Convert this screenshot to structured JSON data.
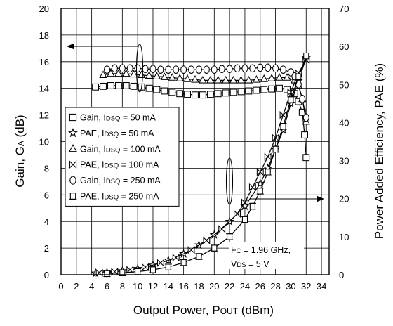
{
  "chart_data": {
    "type": "line",
    "title": "",
    "xlabel": "Output Power, P",
    "xlabel_sub": "OUT",
    "xlabel_unit": " (dBm)",
    "ylabel": "Gain, G",
    "ylabel_sub": "A",
    "ylabel_unit": " (dB)",
    "y2label": "Power Added Efficiency, PAE (%)",
    "xlim": [
      0,
      35
    ],
    "ylim": [
      0,
      20
    ],
    "y2lim": [
      0,
      70
    ],
    "grid": true,
    "xticks": [
      "0",
      "2",
      "4",
      "6",
      "8",
      "10",
      "12",
      "14",
      "16",
      "18",
      "20",
      "22",
      "24",
      "26",
      "28",
      "30",
      "32",
      "34"
    ],
    "yticks": [
      "0",
      "2",
      "4",
      "6",
      "8",
      "10",
      "12",
      "14",
      "16",
      "18",
      "20"
    ],
    "y2ticks": [
      "0",
      "10",
      "20",
      "30",
      "40",
      "50",
      "60",
      "70"
    ],
    "legend_position": "left-center",
    "legend": [
      {
        "series": 0,
        "pre": "Gain, I",
        "sub": "DSQ",
        "post": " = 50 mA"
      },
      {
        "series": 1,
        "pre": "PAE, I",
        "sub": "DSQ",
        "post": " = 50 mA"
      },
      {
        "series": 2,
        "pre": "Gain, I",
        "sub": "DSQ",
        "post": " = 100 mA"
      },
      {
        "series": 3,
        "pre": "PAE, I",
        "sub": "DSQ",
        "post": " = 100 mA"
      },
      {
        "series": 4,
        "pre": "Gain, I",
        "sub": "DSQ",
        "post": " = 250 mA"
      },
      {
        "series": 5,
        "pre": "PAE, I",
        "sub": "DSQ",
        "post": " = 250 mA"
      }
    ],
    "annotation": {
      "line1_pre": "F",
      "line1_sub": "C",
      "line1_post": " = 1.96 GHz,",
      "line2_pre": "V",
      "line2_sub": "DS",
      "line2_post": " = 5 V"
    },
    "series": [
      {
        "marker": "square",
        "axis": "left",
        "x": [
          4.5,
          5.5,
          6.5,
          7.5,
          8.5,
          9.5,
          10.5,
          11.5,
          12.5,
          13.5,
          14.5,
          15.5,
          16.5,
          17.5,
          18.5,
          19.5,
          20.5,
          21.5,
          22.5,
          23.5,
          24.5,
          25.5,
          26.5,
          27.5,
          28.5,
          29.5,
          30.5,
          31,
          31.5,
          31.8,
          32
        ],
        "y": [
          14.1,
          14.15,
          14.2,
          14.2,
          14.2,
          14.15,
          14.1,
          14.0,
          13.9,
          13.8,
          13.7,
          13.6,
          13.55,
          13.5,
          13.5,
          13.55,
          13.6,
          13.65,
          13.7,
          13.75,
          13.8,
          13.85,
          13.9,
          13.95,
          14.0,
          13.9,
          13.6,
          13.0,
          12.2,
          10.5,
          8.8
        ]
      },
      {
        "marker": "star",
        "axis": "right",
        "x": [
          4.5,
          6,
          8,
          10,
          12,
          14,
          16,
          18,
          20,
          22,
          24,
          26,
          27,
          28,
          29,
          30,
          31,
          32
        ],
        "y": [
          0.4,
          0.6,
          1.0,
          1.6,
          2.5,
          3.8,
          5.5,
          7.8,
          10.5,
          14,
          18,
          24,
          28,
          33,
          38,
          45,
          51,
          57
        ]
      },
      {
        "marker": "triangle",
        "axis": "left",
        "x": [
          5.5,
          6.5,
          7.5,
          8.5,
          9.5,
          10.5,
          11.5,
          12.5,
          13.5,
          14.5,
          15.5,
          16.5,
          17.5,
          18.5,
          19.5,
          20.5,
          21.5,
          22.5,
          23.5,
          24.5,
          25.5,
          26.5,
          27.5,
          28.5,
          29.5,
          30.5,
          31,
          31.5,
          32
        ],
        "y": [
          15.0,
          15.1,
          15.1,
          15.1,
          15.05,
          15.0,
          14.95,
          14.9,
          14.85,
          14.8,
          14.75,
          14.7,
          14.65,
          14.6,
          14.6,
          14.6,
          14.6,
          14.6,
          14.6,
          14.6,
          14.65,
          14.7,
          14.75,
          14.8,
          14.8,
          14.6,
          14.2,
          13.2,
          11.5
        ]
      },
      {
        "marker": "bowtie",
        "axis": "right",
        "x": [
          5,
          7,
          9,
          11,
          13,
          15,
          17,
          19,
          21,
          23,
          24,
          25,
          26,
          27,
          28,
          29,
          30,
          31,
          32
        ],
        "y": [
          0.5,
          0.8,
          1.3,
          2.0,
          3.1,
          4.5,
          6.5,
          9,
          12,
          16,
          19,
          23,
          27,
          31,
          36,
          42,
          48,
          53,
          56.5
        ]
      },
      {
        "marker": "circle",
        "axis": "left",
        "x": [
          6,
          7,
          8,
          9,
          10,
          11,
          12,
          13,
          14,
          15,
          16,
          17,
          18,
          19,
          20,
          21,
          22,
          23,
          24,
          25,
          26,
          27,
          28,
          29,
          30,
          30.5,
          31,
          31.5,
          32
        ],
        "y": [
          15.4,
          15.5,
          15.5,
          15.5,
          15.5,
          15.45,
          15.45,
          15.4,
          15.4,
          15.4,
          15.4,
          15.4,
          15.4,
          15.4,
          15.4,
          15.45,
          15.45,
          15.5,
          15.5,
          15.5,
          15.55,
          15.55,
          15.5,
          15.4,
          15.2,
          14.9,
          14.3,
          13.2,
          11.8
        ]
      },
      {
        "marker": "sqcross",
        "axis": "right",
        "x": [
          6,
          8,
          10,
          12,
          14,
          16,
          18,
          20,
          22,
          24,
          25,
          26,
          27,
          28,
          29,
          30,
          31,
          32
        ],
        "y": [
          0.3,
          0.5,
          0.8,
          1.3,
          2.0,
          3.2,
          4.8,
          7,
          10,
          14.5,
          18,
          22,
          27,
          33,
          39,
          46,
          52,
          57.5
        ]
      }
    ]
  }
}
